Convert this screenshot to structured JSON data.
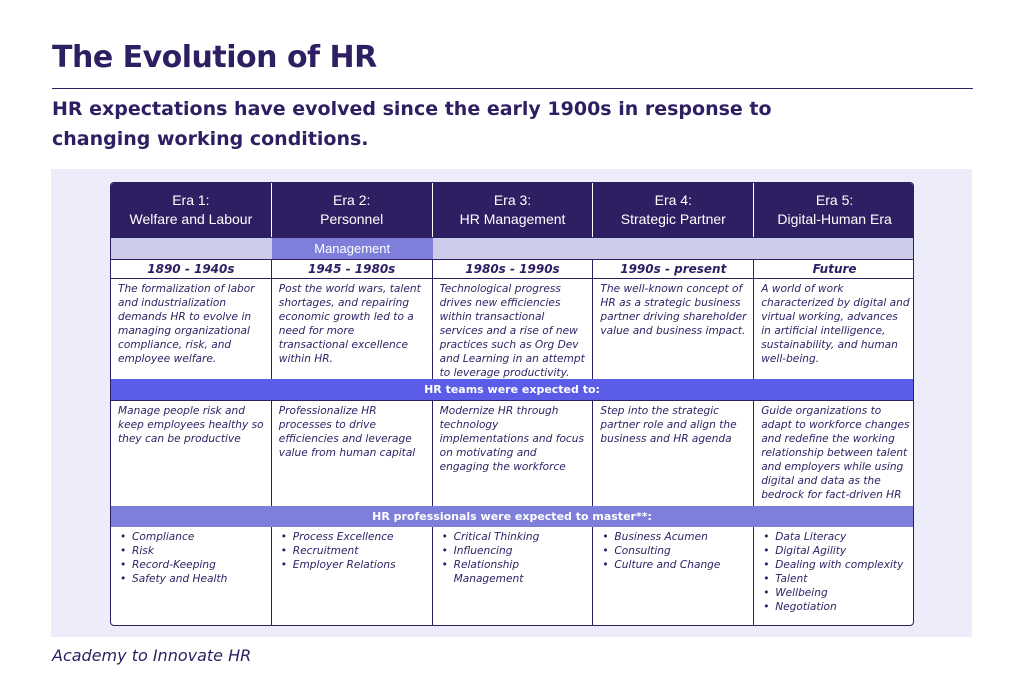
{
  "title": "The Evolution of HR",
  "subtitle": "HR expectations have evolved since the early 1900s in response to changing working conditions.",
  "footer": "Academy to Innovate HR",
  "table": {
    "eras": [
      {
        "label": "Era 1:",
        "name": "Welfare and Labour",
        "period": "1890 - 1940s",
        "description": "The formalization of labor and industrialization demands HR to evolve in managing organizational compliance, risk, and employee welfare.",
        "expectation": "Manage people risk and keep employees healthy so they can be productive",
        "skills": [
          "Compliance",
          "Risk",
          "Record-Keeping",
          "Safety and Health"
        ]
      },
      {
        "label": "Era 2:",
        "name": "Personnel",
        "name_continued": "Management",
        "period": "1945 - 1980s",
        "description": "Post the world wars, talent shortages, and repairing economic growth led to a need for more transactional excellence within HR.",
        "expectation": "Professionalize HR processes to drive efficiencies and leverage value from human capital",
        "skills": [
          "Process Excellence",
          "Recruitment",
          "Employer Relations"
        ]
      },
      {
        "label": "Era 3:",
        "name": "HR Management",
        "period": "1980s - 1990s",
        "description": "Technological progress drives new efficiencies within transactional services and a rise of new practices such as Org Dev and Learning in an attempt to leverage productivity.",
        "expectation": "Modernize HR through technology implementations and focus on motivating and engaging the workforce",
        "skills": [
          "Critical Thinking",
          "Influencing",
          "Relationship Management"
        ]
      },
      {
        "label": "Era 4:",
        "name": "Strategic Partner",
        "period": "1990s - present",
        "description": "The well-known concept of HR as a strategic business partner driving shareholder value and business impact.",
        "expectation": "Step into the strategic partner role and align the business and HR agenda",
        "skills": [
          "Business Acumen",
          "Consulting",
          "Culture and Change"
        ]
      },
      {
        "label": "Era 5:",
        "name": "Digital-Human Era",
        "period": "Future",
        "description": "A world of work characterized by digital and virtual working, advances in artificial intelligence, sustainability, and human well-being.",
        "expectation": "Guide organizations to adapt to workforce changes and redefine the working relationship between talent and employers while using digital and data as the bedrock for fact-driven HR",
        "skills": [
          "Data Literacy",
          "Digital Agility",
          "Dealing with complexity",
          "Talent",
          "Wellbeing",
          "Negotiation"
        ]
      }
    ],
    "band_expected": "HR teams were expected to:",
    "band_master": "HR professionals were expected to master**:"
  }
}
